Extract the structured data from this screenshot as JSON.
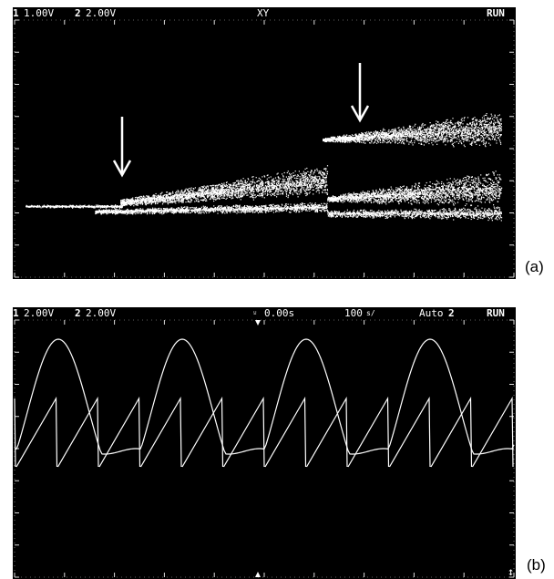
{
  "chart_data": [
    {
      "type": "scatter",
      "panel_label": "(a)",
      "header": {
        "ch1_num": "1",
        "ch1_scale": "1.00V",
        "ch2_num": "2",
        "ch2_scale": "2.00V",
        "mode": "XY",
        "status": "RUN"
      },
      "annotations": [
        "arrow-bifurcation-1",
        "arrow-bifurcation-2"
      ],
      "grid": "dotted graticule ticks"
    },
    {
      "type": "line",
      "panel_label": "(b)",
      "header": {
        "ch1_num": "1",
        "ch1_scale": "2.00V",
        "ch2_num": "2",
        "ch2_scale": "2.00V",
        "trigger_time": "0.00s",
        "timebase": "100",
        "timebase_unit": "s/",
        "mode": "Auto",
        "trigger_ch": "2",
        "status": "RUN"
      },
      "series": [
        {
          "wave": "sine-like",
          "cycles": 4
        },
        {
          "wave": "sawtooth",
          "cycles": 12
        }
      ]
    }
  ],
  "colors": {
    "screen": "#000000",
    "trace": "#ffffff",
    "page": "#ffffff"
  }
}
